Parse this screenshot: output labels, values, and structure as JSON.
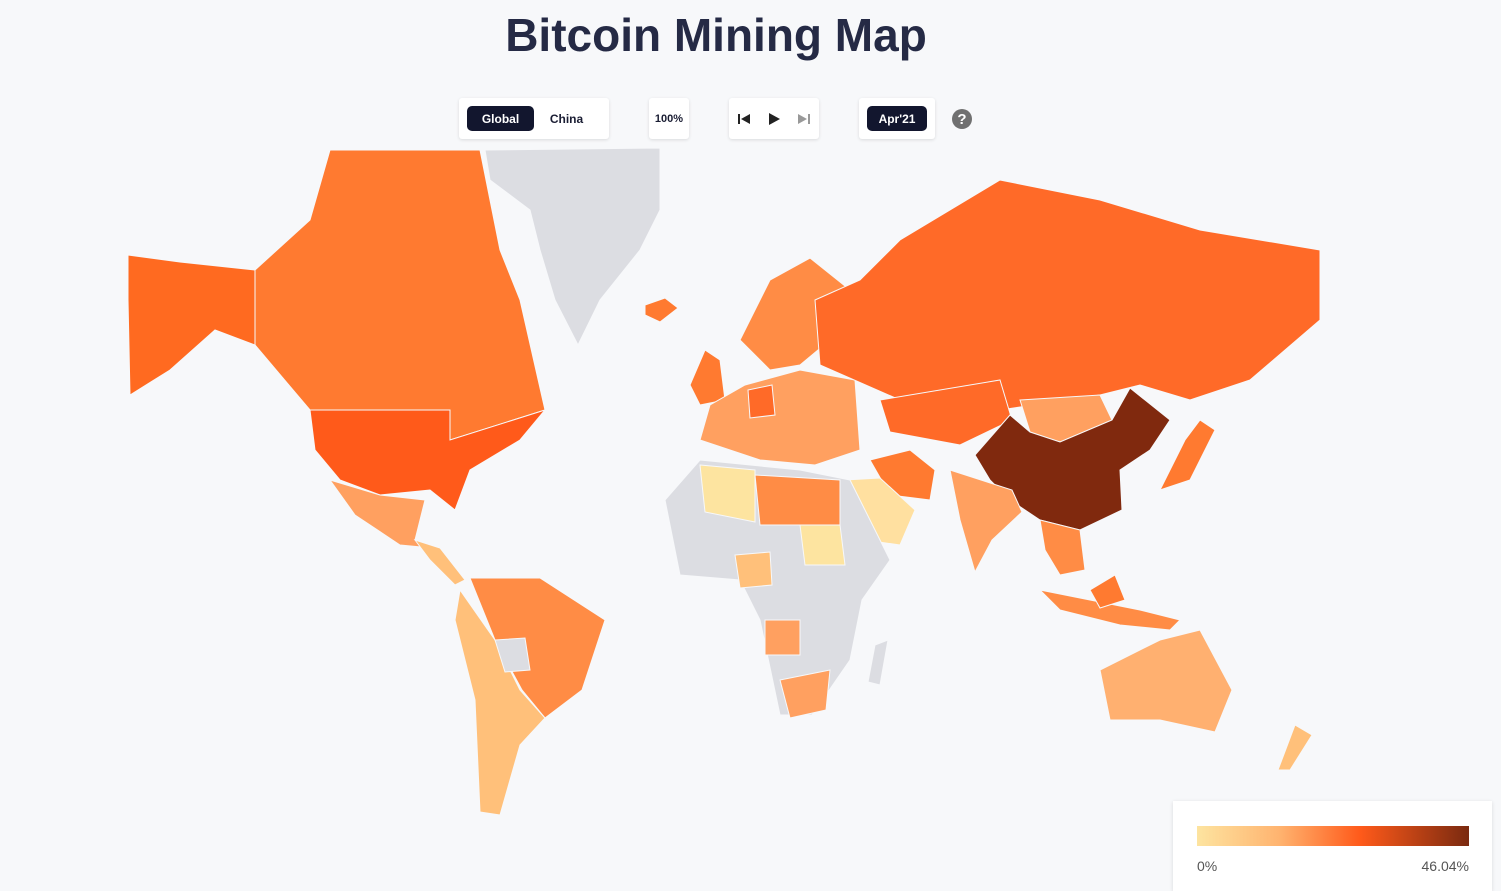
{
  "header": {
    "title": "Bitcoin Mining Map"
  },
  "controls": {
    "scope_options": [
      "Global",
      "China"
    ],
    "zoom": "100%",
    "date": "Apr'21",
    "help": "?"
  },
  "legend": {
    "min_label": "0%",
    "max_label": "46.04%"
  }
}
